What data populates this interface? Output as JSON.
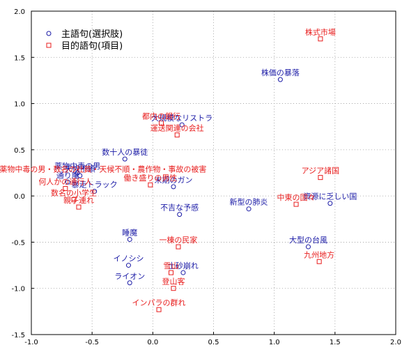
{
  "chart_data": {
    "type": "scatter",
    "xlim": [
      -1.0,
      2.0
    ],
    "ylim": [
      -1.5,
      2.0
    ],
    "x_ticks": [
      "-1.0",
      "-0.5",
      "0.0",
      "0.5",
      "1.0",
      "1.5",
      "2.0"
    ],
    "y_ticks": [
      "2.0",
      "1.5",
      "1.0",
      "0.5",
      "0.0",
      "-0.5",
      "-1.0",
      "-1.5"
    ],
    "grid": true,
    "legend_placement": "top-left",
    "series": [
      {
        "name": "主語句(選択肢)",
        "marker": "circle",
        "color": "#1a1aa6",
        "points": [
          {
            "label": "株価の暴落",
            "x": 1.05,
            "y": 1.26
          },
          {
            "label": "大規模なリストラ",
            "x": 0.24,
            "y": 0.77
          },
          {
            "label": "数十人の暴徒",
            "x": -0.23,
            "y": 0.4
          },
          {
            "label": "薬物中毒の男",
            "x": -0.62,
            "y": 0.25
          },
          {
            "label": "天候不順",
            "x": -0.6,
            "y": 0.22
          },
          {
            "label": "通り魔",
            "x": -0.7,
            "y": 0.15
          },
          {
            "label": "暴走トラック",
            "x": -0.48,
            "y": 0.05
          },
          {
            "label": "末期のガン",
            "x": 0.17,
            "y": 0.1
          },
          {
            "label": "不吉な予感",
            "x": 0.22,
            "y": -0.2
          },
          {
            "label": "新型の肺炎",
            "x": 0.79,
            "y": -0.14
          },
          {
            "label": "資源に乏しい国",
            "x": 1.46,
            "y": -0.08
          },
          {
            "label": "睡魔",
            "x": -0.19,
            "y": -0.47
          },
          {
            "label": "大型の台風",
            "x": 1.28,
            "y": -0.55
          },
          {
            "label": "イノシシ",
            "x": -0.2,
            "y": -0.75
          },
          {
            "label": "土砂崩れ",
            "x": 0.25,
            "y": -0.83
          },
          {
            "label": "ライオン",
            "x": -0.19,
            "y": -0.94
          }
        ]
      },
      {
        "name": "目的語句(項目)",
        "marker": "square",
        "color": "#e81c1c",
        "points": [
          {
            "label": "株式市場",
            "x": 1.38,
            "y": 1.7
          },
          {
            "label": "都内の銀行",
            "x": 0.07,
            "y": 0.79
          },
          {
            "label": "運送関連の会社",
            "x": 0.2,
            "y": 0.66
          },
          {
            "label": "アジア諸国",
            "x": 1.38,
            "y": 0.2
          },
          {
            "label": "働き盛りの男性",
            "x": -0.02,
            "y": 0.12
          },
          {
            "label": "何人かの通行人",
            "x": -0.72,
            "y": 0.08
          },
          {
            "label": "数名の小学生",
            "x": -0.65,
            "y": -0.04
          },
          {
            "label": "親子連れ",
            "x": -0.61,
            "y": -0.12
          },
          {
            "label": "中東の国々",
            "x": 1.18,
            "y": -0.09
          },
          {
            "label": "一棟の民家",
            "x": 0.21,
            "y": -0.55
          },
          {
            "label": "九州地方",
            "x": 1.37,
            "y": -0.71
          },
          {
            "label": "雪山",
            "x": 0.15,
            "y": -0.83
          },
          {
            "label": "登山客",
            "x": 0.17,
            "y": -1.0
          },
          {
            "label": "インパラの群れ",
            "x": 0.05,
            "y": -1.23
          }
        ]
      }
    ],
    "cluster_text": "薬物中毒の男・数名の社員・天候不順・農作物・事故の被害"
  }
}
